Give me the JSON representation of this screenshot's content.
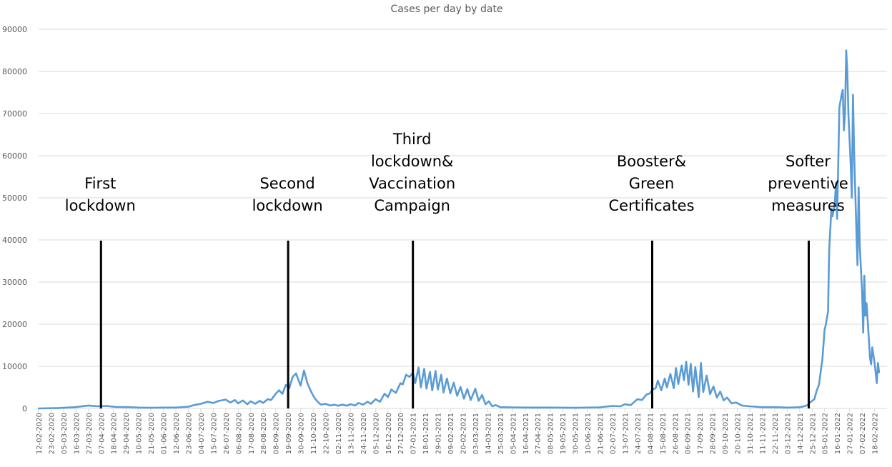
{
  "chart_data": {
    "type": "line",
    "title": "Cases per day by date",
    "xlabel": "",
    "ylabel": "",
    "ylim": [
      0,
      90000
    ],
    "yticks": [
      0,
      10000,
      20000,
      30000,
      40000,
      50000,
      60000,
      70000,
      80000,
      90000
    ],
    "grid": true,
    "legend": "none",
    "xlim": [
      "12-02-2020",
      "01-03-2022"
    ],
    "tick_labels": [
      "12-02-2020",
      "23-02-2020",
      "05-03-2020",
      "16-03-2020",
      "27-03-2020",
      "07-04-2020",
      "18-04-2020",
      "29-04-2020",
      "10-05-2020",
      "21-05-2020",
      "01-06-2020",
      "12-06-2020",
      "23-06-2020",
      "04-07-2020",
      "15-07-2020",
      "26-07-2020",
      "06-08-2020",
      "17-08-2020",
      "28-08-2020",
      "08-09-2020",
      "19-09-2020",
      "30-09-2020",
      "11-10-2020",
      "22-10-2020",
      "02-11-2020",
      "13-11-2020",
      "24-11-2020",
      "05-12-2020",
      "16-12-2020",
      "27-12-2020",
      "07-01-2021",
      "18-01-2021",
      "29-01-2021",
      "09-02-2021",
      "20-02-2021",
      "03-03-2021",
      "14-03-2021",
      "25-03-2021",
      "05-04-2021",
      "16-04-2021",
      "27-04-2021",
      "08-05-2021",
      "19-05-2021",
      "30-05-2021",
      "10-06-2021",
      "21-06-2021",
      "02-07-2021",
      "13-07-2021",
      "24-07-2021",
      "04-08-2021",
      "15-08-2021",
      "26-08-2021",
      "06-09-2021",
      "17-09-2021",
      "28-09-2021",
      "09-10-2021",
      "20-10-2021",
      "31-10-2021",
      "11-11-2021",
      "22-11-2021",
      "03-12-2021",
      "14-12-2021",
      "25-12-2021",
      "05-01-2022",
      "16-01-2022",
      "27-01-2022",
      "07-02-2022",
      "18-02-2022"
    ],
    "series": [
      {
        "color": "#5b9bd5",
        "points": [
          [
            "12-02-2020",
            0
          ],
          [
            "01-03-2020",
            100
          ],
          [
            "15-03-2020",
            300
          ],
          [
            "27-03-2020",
            700
          ],
          [
            "04-04-2020",
            500
          ],
          [
            "12-04-2020",
            600
          ],
          [
            "20-04-2020",
            350
          ],
          [
            "01-05-2020",
            300
          ],
          [
            "10-05-2020",
            200
          ],
          [
            "21-05-2020",
            150
          ],
          [
            "01-06-2020",
            200
          ],
          [
            "12-06-2020",
            200
          ],
          [
            "23-06-2020",
            400
          ],
          [
            "28-06-2020",
            800
          ],
          [
            "04-07-2020",
            1100
          ],
          [
            "10-07-2020",
            1600
          ],
          [
            "15-07-2020",
            1300
          ],
          [
            "20-07-2020",
            1800
          ],
          [
            "26-07-2020",
            2100
          ],
          [
            "30-07-2020",
            1400
          ],
          [
            "03-08-2020",
            2000
          ],
          [
            "06-08-2020",
            1200
          ],
          [
            "10-08-2020",
            1900
          ],
          [
            "14-08-2020",
            1000
          ],
          [
            "17-08-2020",
            1700
          ],
          [
            "21-08-2020",
            1100
          ],
          [
            "25-08-2020",
            1800
          ],
          [
            "28-08-2020",
            1300
          ],
          [
            "01-09-2020",
            2200
          ],
          [
            "04-09-2020",
            2000
          ],
          [
            "08-09-2020",
            3500
          ],
          [
            "11-09-2020",
            4300
          ],
          [
            "14-09-2020",
            3500
          ],
          [
            "17-09-2020",
            5600
          ],
          [
            "20-09-2020",
            4800
          ],
          [
            "23-09-2020",
            7500
          ],
          [
            "26-09-2020",
            8300
          ],
          [
            "28-09-2020",
            6800
          ],
          [
            "30-09-2020",
            5400
          ],
          [
            "03-10-2020",
            9000
          ],
          [
            "06-10-2020",
            6000
          ],
          [
            "09-10-2020",
            4100
          ],
          [
            "12-10-2020",
            2600
          ],
          [
            "15-10-2020",
            1600
          ],
          [
            "18-10-2020",
            900
          ],
          [
            "22-10-2020",
            1100
          ],
          [
            "26-10-2020",
            700
          ],
          [
            "30-10-2020",
            900
          ],
          [
            "02-11-2020",
            650
          ],
          [
            "06-11-2020",
            900
          ],
          [
            "10-11-2020",
            650
          ],
          [
            "13-11-2020",
            1000
          ],
          [
            "17-11-2020",
            700
          ],
          [
            "20-11-2020",
            1300
          ],
          [
            "24-11-2020",
            900
          ],
          [
            "28-11-2020",
            1600
          ],
          [
            "01-12-2020",
            1100
          ],
          [
            "05-12-2020",
            2200
          ],
          [
            "09-12-2020",
            1600
          ],
          [
            "13-12-2020",
            3500
          ],
          [
            "16-12-2020",
            2700
          ],
          [
            "19-12-2020",
            4500
          ],
          [
            "23-12-2020",
            3700
          ],
          [
            "27-12-2020",
            6000
          ],
          [
            "29-12-2020",
            5700
          ],
          [
            "01-01-2021",
            8000
          ],
          [
            "04-01-2021",
            7500
          ],
          [
            "07-01-2021",
            8500
          ],
          [
            "09-01-2021",
            6000
          ],
          [
            "12-01-2021",
            9700
          ],
          [
            "14-01-2021",
            5000
          ],
          [
            "17-01-2021",
            9400
          ],
          [
            "19-01-2021",
            4700
          ],
          [
            "22-01-2021",
            8700
          ],
          [
            "24-01-2021",
            4300
          ],
          [
            "27-01-2021",
            8900
          ],
          [
            "29-01-2021",
            4500
          ],
          [
            "01-02-2021",
            8000
          ],
          [
            "03-02-2021",
            3800
          ],
          [
            "06-02-2021",
            7100
          ],
          [
            "09-02-2021",
            3600
          ],
          [
            "12-02-2021",
            6100
          ],
          [
            "15-02-2021",
            3000
          ],
          [
            "18-02-2021",
            5100
          ],
          [
            "21-02-2021",
            2300
          ],
          [
            "24-02-2021",
            4600
          ],
          [
            "27-02-2021",
            2000
          ],
          [
            "03-03-2021",
            4700
          ],
          [
            "06-03-2021",
            1800
          ],
          [
            "09-03-2021",
            3200
          ],
          [
            "12-03-2021",
            1000
          ],
          [
            "15-03-2021",
            1700
          ],
          [
            "18-03-2021",
            500
          ],
          [
            "21-03-2021",
            800
          ],
          [
            "25-03-2021",
            300
          ],
          [
            "05-04-2021",
            250
          ],
          [
            "20-04-2021",
            200
          ],
          [
            "08-05-2021",
            200
          ],
          [
            "30-05-2021",
            150
          ],
          [
            "20-06-2021",
            250
          ],
          [
            "02-07-2021",
            600
          ],
          [
            "09-07-2021",
            500
          ],
          [
            "13-07-2021",
            1000
          ],
          [
            "18-07-2021",
            800
          ],
          [
            "24-07-2021",
            2200
          ],
          [
            "28-07-2021",
            2000
          ],
          [
            "01-08-2021",
            3300
          ],
          [
            "04-08-2021",
            3600
          ],
          [
            "06-08-2021",
            4500
          ],
          [
            "09-08-2021",
            4800
          ],
          [
            "11-08-2021",
            6600
          ],
          [
            "14-08-2021",
            4300
          ],
          [
            "17-08-2021",
            7100
          ],
          [
            "19-08-2021",
            5000
          ],
          [
            "22-08-2021",
            8200
          ],
          [
            "25-08-2021",
            4800
          ],
          [
            "27-08-2021",
            9600
          ],
          [
            "29-08-2021",
            5800
          ],
          [
            "01-09-2021",
            10200
          ],
          [
            "03-09-2021",
            6700
          ],
          [
            "05-09-2021",
            11100
          ],
          [
            "07-09-2021",
            5600
          ],
          [
            "09-09-2021",
            10600
          ],
          [
            "11-09-2021",
            4000
          ],
          [
            "13-09-2021",
            9800
          ],
          [
            "16-09-2021",
            2700
          ],
          [
            "18-09-2021",
            10800
          ],
          [
            "20-09-2021",
            3900
          ],
          [
            "23-09-2021",
            7800
          ],
          [
            "26-09-2021",
            3400
          ],
          [
            "29-09-2021",
            5200
          ],
          [
            "02-10-2021",
            2600
          ],
          [
            "05-10-2021",
            4000
          ],
          [
            "08-10-2021",
            1900
          ],
          [
            "11-10-2021",
            2600
          ],
          [
            "15-10-2021",
            1200
          ],
          [
            "19-10-2021",
            1400
          ],
          [
            "24-10-2021",
            700
          ],
          [
            "31-10-2021",
            500
          ],
          [
            "11-11-2021",
            300
          ],
          [
            "22-11-2021",
            300
          ],
          [
            "03-12-2021",
            200
          ],
          [
            "10-12-2021",
            250
          ],
          [
            "14-12-2021",
            300
          ],
          [
            "18-12-2021",
            500
          ],
          [
            "21-12-2021",
            800
          ],
          [
            "24-12-2021",
            1600
          ],
          [
            "27-12-2021",
            2200
          ],
          [
            "29-12-2021",
            4200
          ],
          [
            "31-12-2021",
            5600
          ],
          [
            "02-01-2022",
            9700
          ],
          [
            "03-01-2022",
            11500
          ],
          [
            "05-01-2022",
            18700
          ],
          [
            "06-01-2022",
            19800
          ],
          [
            "08-01-2022",
            23000
          ],
          [
            "09-01-2022",
            37500
          ],
          [
            "11-01-2022",
            47500
          ],
          [
            "12-01-2022",
            45600
          ],
          [
            "14-01-2022",
            49000
          ],
          [
            "15-01-2022",
            53600
          ],
          [
            "16-01-2022",
            45000
          ],
          [
            "18-01-2022",
            71500
          ],
          [
            "20-01-2022",
            74500
          ],
          [
            "21-01-2022",
            75600
          ],
          [
            "22-01-2022",
            66000
          ],
          [
            "23-01-2022",
            70000
          ],
          [
            "24-01-2022",
            85000
          ],
          [
            "25-01-2022",
            80000
          ],
          [
            "26-01-2022",
            70000
          ],
          [
            "28-01-2022",
            58000
          ],
          [
            "29-01-2022",
            50000
          ],
          [
            "30-01-2022",
            74500
          ],
          [
            "31-01-2022",
            61000
          ],
          [
            "02-02-2022",
            42000
          ],
          [
            "03-02-2022",
            34000
          ],
          [
            "04-02-2022",
            52500
          ],
          [
            "05-02-2022",
            38500
          ],
          [
            "07-02-2022",
            28000
          ],
          [
            "08-02-2022",
            18000
          ],
          [
            "09-02-2022",
            31500
          ],
          [
            "10-02-2022",
            22000
          ],
          [
            "11-02-2022",
            25000
          ],
          [
            "13-02-2022",
            16500
          ],
          [
            "14-02-2022",
            12000
          ],
          [
            "15-02-2022",
            10500
          ],
          [
            "16-02-2022",
            14500
          ],
          [
            "18-02-2022",
            11000
          ],
          [
            "20-02-2022",
            6000
          ],
          [
            "21-02-2022",
            10800
          ],
          [
            "22-02-2022",
            8600
          ]
        ]
      }
    ],
    "annotations": [
      {
        "date": "07-04-2020",
        "lines": [
          "First",
          "lockdown"
        ]
      },
      {
        "date": "19-09-2020",
        "lines": [
          "Second",
          "lockdown"
        ]
      },
      {
        "date": "07-01-2021",
        "lines": [
          "Third",
          "lockdown&",
          "Vaccination",
          "Campaign"
        ]
      },
      {
        "date": "06-08-2021",
        "lines": [
          "Booster&",
          "Green",
          "Certificates"
        ]
      },
      {
        "date": "22-12-2021",
        "lines": [
          "Softer",
          "preventive",
          "measures"
        ]
      }
    ]
  }
}
